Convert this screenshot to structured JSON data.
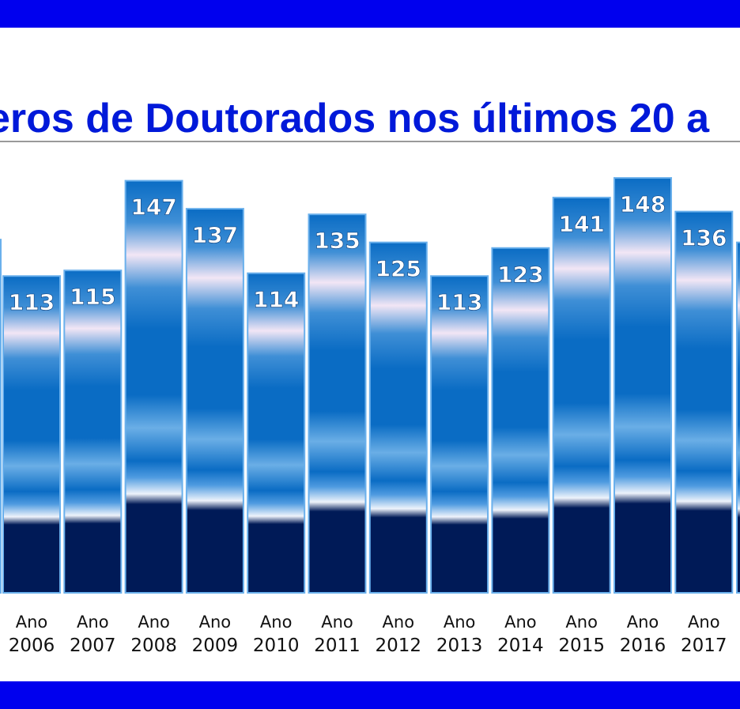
{
  "colors": {
    "band": "#0000ee",
    "title": "#0019d9",
    "bar_edge": "#6ab0ec",
    "bar_mid": "#0a6cc4",
    "bar_glow": "#f2e6f5",
    "bar_base": "#001a57",
    "tick_text": "#111111"
  },
  "title": "eros de Doutorados nos últimos 20 a",
  "chart_data": {
    "type": "bar",
    "title": "eros de Doutorados nos últimos 20 a",
    "categories": [
      [
        "Ano",
        "2006"
      ],
      [
        "Ano",
        "2007"
      ],
      [
        "Ano",
        "2008"
      ],
      [
        "Ano",
        "2009"
      ],
      [
        "Ano",
        "2010"
      ],
      [
        "Ano",
        "2011"
      ],
      [
        "Ano",
        "2012"
      ],
      [
        "Ano",
        "2013"
      ],
      [
        "Ano",
        "2014"
      ],
      [
        "Ano",
        "2015"
      ],
      [
        "Ano",
        "2016"
      ],
      [
        "Ano",
        "2017"
      ]
    ],
    "values": [
      113,
      115,
      147,
      137,
      114,
      135,
      125,
      113,
      123,
      141,
      148,
      136
    ],
    "data_labels": [
      "113",
      "115",
      "147",
      "137",
      "114",
      "135",
      "125",
      "113",
      "123",
      "141",
      "148",
      "136"
    ],
    "partial_bars_cropped": {
      "left_edge_value": 126,
      "right_edge_value": 125
    },
    "ylim": [
      0,
      150
    ],
    "grid": false,
    "legend": "none"
  }
}
